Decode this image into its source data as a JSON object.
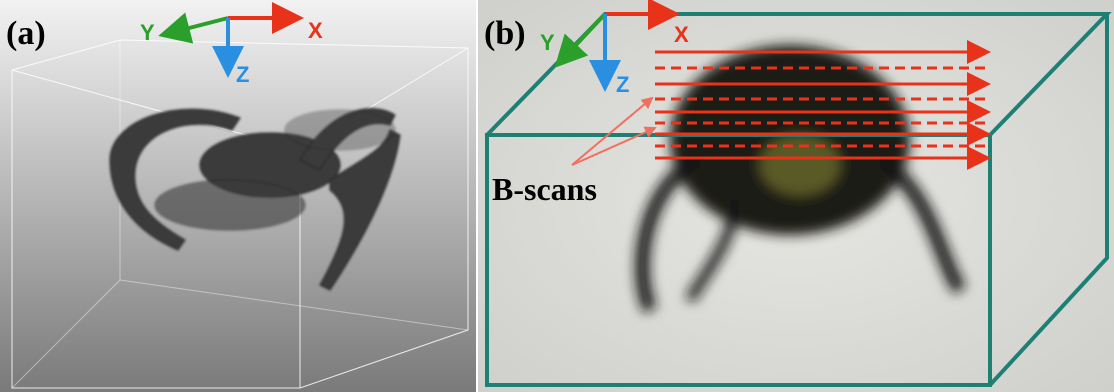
{
  "panels": [
    {
      "label": "(a)",
      "axes": {
        "x": "X",
        "y": "Y",
        "z": "Z"
      }
    },
    {
      "label": "(b)",
      "axes": {
        "x": "X",
        "y": "Y",
        "z": "Z"
      },
      "annotation": "B-scans"
    }
  ]
}
